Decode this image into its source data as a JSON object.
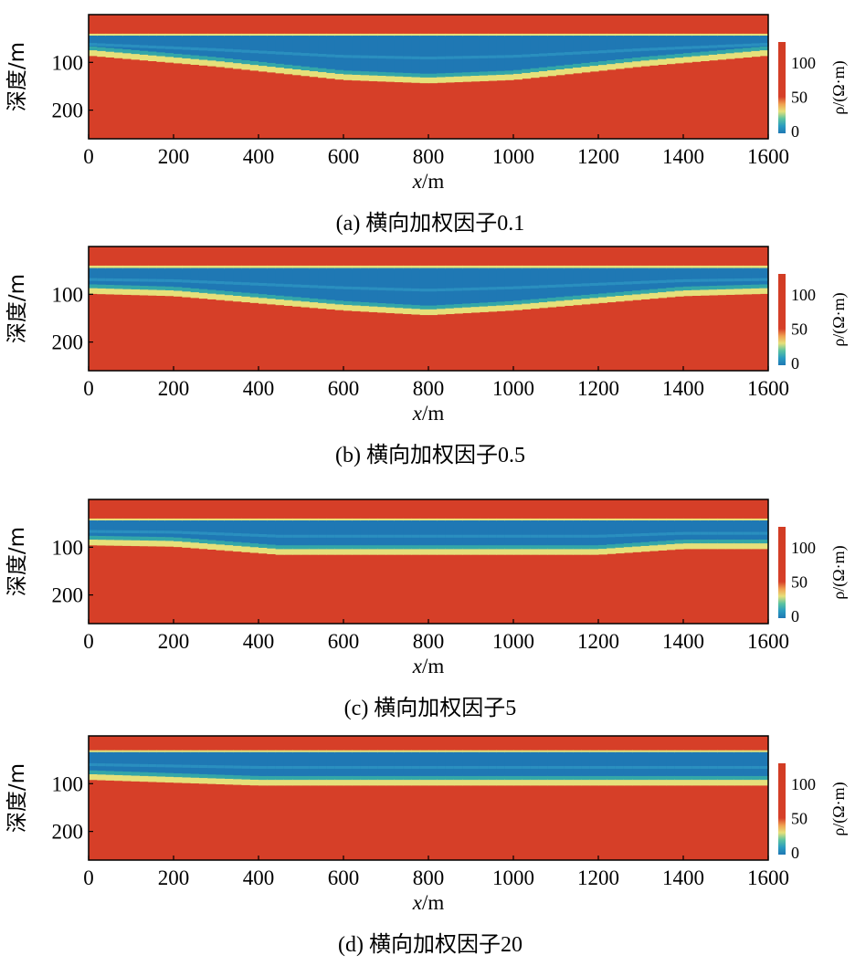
{
  "figure": {
    "colorbar": {
      "label": "ρ/(Ω·m)",
      "ticks": [
        "0",
        "50",
        "100"
      ],
      "range": [
        0,
        120
      ]
    },
    "palette": {
      "low": "#1f78b4",
      "mid_low": "#33a6a8",
      "mid": "#e6e07a",
      "high": "#d63f28"
    }
  },
  "chart_data": [
    {
      "type": "heatmap",
      "caption": "(a) 横向加权因子0.1",
      "xlabel_var": "x",
      "xlabel_unit": "/m",
      "ylabel": "深度/m",
      "x_ticks": [
        "0",
        "200",
        "400",
        "600",
        "800",
        "1000",
        "1200",
        "1400",
        "1600"
      ],
      "y_ticks": [
        "100",
        "200"
      ],
      "xlim": [
        0,
        1600
      ],
      "ylim_depth": [
        260,
        0
      ],
      "lateral_weight_factor": 0.1,
      "layers": [
        {
          "name": "top resistive",
          "rho": 120,
          "depth_top": 0,
          "depth_bottom": 42
        },
        {
          "name": "conductive layer",
          "rho": 5,
          "depth_top_at_x": [
            [
              0,
              44
            ],
            [
              800,
              44
            ],
            [
              1600,
              44
            ]
          ],
          "depth_bottom_at_x": [
            [
              0,
              82
            ],
            [
              300,
              105
            ],
            [
              600,
              133
            ],
            [
              800,
              140
            ],
            [
              1000,
              133
            ],
            [
              1300,
              105
            ],
            [
              1600,
              82
            ]
          ]
        },
        {
          "name": "basement",
          "rho": 120
        }
      ]
    },
    {
      "type": "heatmap",
      "caption": "(b) 横向加权因子0.5",
      "xlabel_var": "x",
      "xlabel_unit": "/m",
      "ylabel": "深度/m",
      "x_ticks": [
        "0",
        "200",
        "400",
        "600",
        "800",
        "1000",
        "1200",
        "1400",
        "1600"
      ],
      "y_ticks": [
        "100",
        "200"
      ],
      "xlim": [
        0,
        1600
      ],
      "ylim_depth": [
        260,
        0
      ],
      "lateral_weight_factor": 0.5,
      "layers": [
        {
          "name": "top resistive",
          "rho": 120,
          "depth_top": 0,
          "depth_bottom": 42
        },
        {
          "name": "conductive layer",
          "rho": 5,
          "depth_top_at_x": [
            [
              0,
              45
            ],
            [
              800,
              45
            ],
            [
              1600,
              45
            ]
          ],
          "depth_bottom_at_x": [
            [
              0,
              95
            ],
            [
              200,
              100
            ],
            [
              600,
              130
            ],
            [
              800,
              140
            ],
            [
              1000,
              130
            ],
            [
              1400,
              100
            ],
            [
              1600,
              95
            ]
          ]
        },
        {
          "name": "basement",
          "rho": 120
        }
      ]
    },
    {
      "type": "heatmap",
      "caption": "(c) 横向加权因子5",
      "xlabel_var": "x",
      "xlabel_unit": "/m",
      "ylabel": "深度/m",
      "x_ticks": [
        "0",
        "200",
        "400",
        "600",
        "800",
        "1000",
        "1200",
        "1400",
        "1600"
      ],
      "y_ticks": [
        "100",
        "200"
      ],
      "xlim": [
        0,
        1600
      ],
      "ylim_depth": [
        260,
        0
      ],
      "lateral_weight_factor": 5,
      "layers": [
        {
          "name": "top resistive",
          "rho": 120,
          "depth_top": 0,
          "depth_bottom": 42
        },
        {
          "name": "conductive layer",
          "rho": 5,
          "depth_top_at_x": [
            [
              0,
              44
            ],
            [
              1600,
              44
            ]
          ],
          "depth_bottom_at_x": [
            [
              0,
              92
            ],
            [
              200,
              95
            ],
            [
              450,
              112
            ],
            [
              1200,
              112
            ],
            [
              1400,
              100
            ],
            [
              1600,
              100
            ]
          ]
        },
        {
          "name": "basement",
          "rho": 120
        }
      ]
    },
    {
      "type": "heatmap",
      "caption": "(d) 横向加权因子20",
      "xlabel_var": "x",
      "xlabel_unit": "/m",
      "ylabel": "深度/m",
      "x_ticks": [
        "0",
        "200",
        "400",
        "600",
        "800",
        "1000",
        "1200",
        "1400",
        "1600"
      ],
      "y_ticks": [
        "100",
        "200"
      ],
      "xlim": [
        0,
        1600
      ],
      "ylim_depth": [
        260,
        0
      ],
      "lateral_weight_factor": 20,
      "layers": [
        {
          "name": "top resistive",
          "rho": 120,
          "depth_top": 0,
          "depth_bottom": 32
        },
        {
          "name": "conductive layer",
          "rho": 5,
          "depth_top_at_x": [
            [
              0,
              34
            ],
            [
              1600,
              34
            ]
          ],
          "depth_bottom_at_x": [
            [
              0,
              88
            ],
            [
              400,
              100
            ],
            [
              1200,
              100
            ],
            [
              1600,
              100
            ]
          ]
        },
        {
          "name": "basement",
          "rho": 120
        }
      ]
    }
  ]
}
